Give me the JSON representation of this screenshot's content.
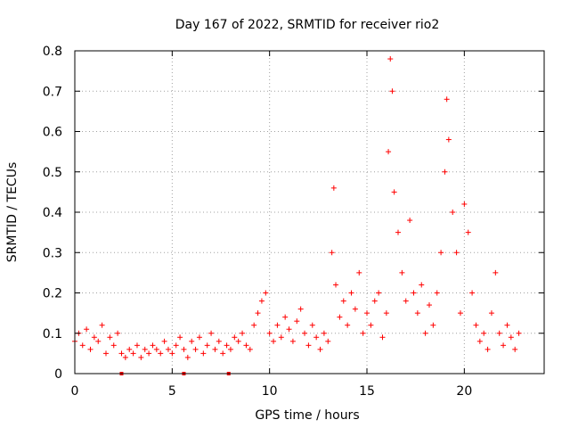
{
  "chart_data": {
    "type": "scatter",
    "title": "Day 167 of 2022, SRMTID for receiver rio2",
    "xlabel": "GPS time / hours",
    "ylabel": "SRMTID / TECUs",
    "xlim": [
      0,
      24.1
    ],
    "ylim": [
      0,
      0.8
    ],
    "xticks": [
      0,
      5,
      10,
      15,
      20
    ],
    "xtick_labels": [
      "0",
      "5",
      "10",
      "15",
      "20"
    ],
    "yticks": [
      0,
      0.1,
      0.2,
      0.3,
      0.4,
      0.5,
      0.6,
      0.7,
      0.8
    ],
    "ytick_labels": [
      "0",
      "0.1",
      "0.2",
      "0.3",
      "0.4",
      "0.5",
      "0.6",
      "0.7",
      "0.8"
    ],
    "grid": true,
    "marker": "plus",
    "color": "#ff0000",
    "series": [
      {
        "name": "rio2",
        "x": [
          0.0,
          0.2,
          0.4,
          0.6,
          0.8,
          1.0,
          1.2,
          1.4,
          1.6,
          1.8,
          2.0,
          2.2,
          2.4,
          2.6,
          2.8,
          3.0,
          3.2,
          3.4,
          3.6,
          3.8,
          4.0,
          4.2,
          4.4,
          4.6,
          4.8,
          5.0,
          5.2,
          5.4,
          5.6,
          5.8,
          6.0,
          6.2,
          6.4,
          6.6,
          6.8,
          7.0,
          7.2,
          7.4,
          7.6,
          7.8,
          8.0,
          8.2,
          8.4,
          8.6,
          8.8,
          9.0,
          9.2,
          9.4,
          9.6,
          9.8,
          10.0,
          10.2,
          10.4,
          10.6,
          10.8,
          11.0,
          11.2,
          11.4,
          11.6,
          11.8,
          12.0,
          12.2,
          12.4,
          12.6,
          12.8,
          13.0,
          13.2,
          13.3,
          13.4,
          13.6,
          13.8,
          14.0,
          14.2,
          14.4,
          14.6,
          14.8,
          15.0,
          15.2,
          15.4,
          15.6,
          15.8,
          16.0,
          16.1,
          16.2,
          16.3,
          16.4,
          16.6,
          16.8,
          17.0,
          17.2,
          17.4,
          17.6,
          17.8,
          18.0,
          18.2,
          18.4,
          18.6,
          18.8,
          19.0,
          19.1,
          19.2,
          19.4,
          19.6,
          19.8,
          20.0,
          20.2,
          20.4,
          20.6,
          20.8,
          21.0,
          21.2,
          21.4,
          21.6,
          21.8,
          22.0,
          22.2,
          22.4,
          22.6,
          22.8
        ],
        "y": [
          0.08,
          0.1,
          0.07,
          0.11,
          0.06,
          0.09,
          0.08,
          0.12,
          0.05,
          0.09,
          0.07,
          0.1,
          0.05,
          0.04,
          0.06,
          0.05,
          0.07,
          0.04,
          0.06,
          0.05,
          0.07,
          0.06,
          0.05,
          0.08,
          0.06,
          0.05,
          0.07,
          0.09,
          0.06,
          0.04,
          0.08,
          0.06,
          0.09,
          0.05,
          0.07,
          0.1,
          0.06,
          0.08,
          0.05,
          0.07,
          0.06,
          0.09,
          0.08,
          0.1,
          0.07,
          0.06,
          0.12,
          0.15,
          0.18,
          0.2,
          0.1,
          0.08,
          0.12,
          0.09,
          0.14,
          0.11,
          0.08,
          0.13,
          0.16,
          0.1,
          0.07,
          0.12,
          0.09,
          0.06,
          0.1,
          0.08,
          0.3,
          0.46,
          0.22,
          0.14,
          0.18,
          0.12,
          0.2,
          0.16,
          0.25,
          0.1,
          0.15,
          0.12,
          0.18,
          0.2,
          0.09,
          0.15,
          0.55,
          0.78,
          0.7,
          0.45,
          0.35,
          0.25,
          0.18,
          0.38,
          0.2,
          0.15,
          0.22,
          0.1,
          0.17,
          0.12,
          0.2,
          0.3,
          0.5,
          0.68,
          0.58,
          0.4,
          0.3,
          0.15,
          0.42,
          0.35,
          0.2,
          0.12,
          0.08,
          0.1,
          0.06,
          0.15,
          0.25,
          0.1,
          0.07,
          0.12,
          0.09,
          0.06,
          0.1
        ]
      }
    ],
    "markers_small_squares_x": [
      2.4,
      5.6,
      7.9
    ]
  }
}
